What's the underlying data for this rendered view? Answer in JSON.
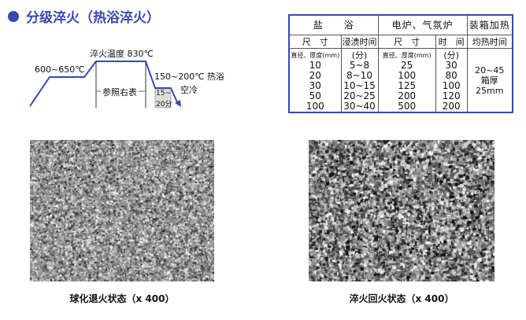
{
  "title": "分级淬火（热浴淬火）",
  "accent": "#3a47b3",
  "diagram": {
    "preheat": "600~650℃",
    "quench_temp": "淬火温度 830℃",
    "refer": "参照右表",
    "bath": "150~200℃ 热浴",
    "air_cool": "空冷",
    "hold_1": "15~",
    "hold_2": "20分"
  },
  "table": {
    "headers": [
      "盐　　浴",
      "电炉、气氛炉",
      "装箱加热"
    ],
    "subheaders": [
      "尺　寸",
      "浸渍时间",
      "尺　寸",
      "时　间",
      "均热时间"
    ],
    "unit_row": [
      "直径、厚度(mm)",
      "(分)",
      "直径、厚度(mm)",
      "(分)"
    ],
    "salt_size": [
      "10",
      "20",
      "30",
      "50",
      "100"
    ],
    "salt_time": [
      "5~8",
      "8~10",
      "10~15",
      "20~25",
      "30~40"
    ],
    "furnace_size": [
      "25",
      "100",
      "125",
      "200",
      "500"
    ],
    "furnace_time": [
      "30",
      "80",
      "100",
      "120",
      "200"
    ],
    "box": [
      "20~45",
      "箱厚",
      "25mm"
    ]
  },
  "captions": [
    "球化退火状态（x 400）",
    "淬火回火状态（x 400）"
  ]
}
